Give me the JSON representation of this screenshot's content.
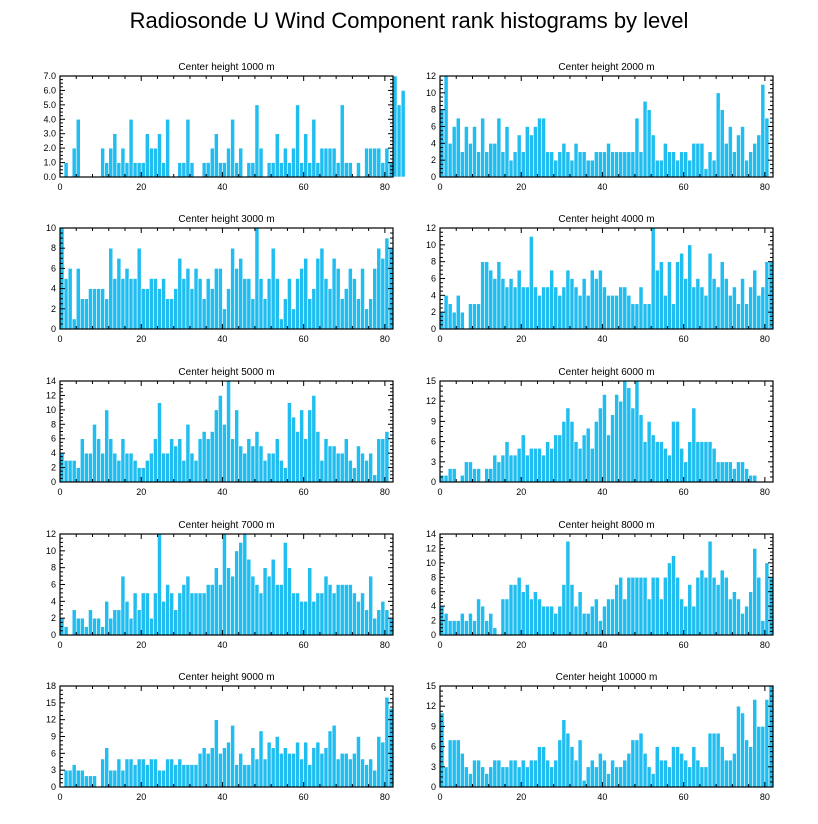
{
  "title": "Radiosonde U Wind Component rank histograms by level",
  "colors": {
    "bar": "#1fbdf0",
    "axis": "#000000",
    "background": "#ffffff"
  },
  "chart_data": [
    {
      "type": "bar",
      "title": "Center height 1000 m",
      "xlim": [
        0,
        82
      ],
      "xticks": [
        0,
        20,
        40,
        60,
        80
      ],
      "ylim": [
        0,
        7
      ],
      "yticks": [
        0,
        1,
        2,
        3,
        4,
        5,
        6,
        7
      ],
      "ytick_labels": [
        "0.0",
        "1.0",
        "2.0",
        "3.0",
        "4.0",
        "5.0",
        "6.0",
        "7.0"
      ],
      "values": [
        0,
        1,
        0,
        2,
        4,
        0,
        0,
        0,
        0,
        0,
        2,
        1,
        2,
        3,
        1,
        2,
        1,
        4,
        1,
        1,
        1,
        3,
        2,
        2,
        3,
        1,
        4,
        0,
        0,
        1,
        1,
        4,
        1,
        0,
        0,
        1,
        1,
        2,
        3,
        1,
        1,
        2,
        4,
        1,
        2,
        0,
        1,
        1,
        5,
        2,
        0,
        1,
        1,
        3,
        1,
        2,
        1,
        2,
        5,
        1,
        3,
        1,
        4,
        1,
        2,
        2,
        2,
        2,
        1,
        5,
        1,
        1,
        0,
        1,
        0,
        2,
        2,
        2,
        2,
        1,
        2,
        1,
        7,
        5,
        6
      ]
    },
    {
      "type": "bar",
      "title": "Center height 2000 m",
      "xlim": [
        0,
        82
      ],
      "xticks": [
        0,
        20,
        40,
        60,
        80
      ],
      "ylim": [
        0,
        12
      ],
      "yticks": [
        0,
        2,
        4,
        6,
        8,
        10,
        12
      ],
      "values": [
        8,
        12,
        4,
        6,
        7,
        3,
        6,
        4,
        6,
        3,
        7,
        3,
        4,
        4,
        7,
        3,
        6,
        2,
        3,
        5,
        3,
        6,
        5,
        6,
        7,
        7,
        3,
        3,
        2,
        3,
        4,
        3,
        2,
        4,
        3,
        3,
        2,
        2,
        3,
        3,
        3,
        4,
        3,
        3,
        3,
        3,
        3,
        3,
        7,
        3,
        9,
        8,
        5,
        2,
        2,
        4,
        3,
        3,
        2,
        3,
        3,
        2,
        4,
        4,
        4,
        1,
        3,
        2,
        10,
        8,
        4,
        6,
        3,
        5,
        6,
        2,
        3,
        4,
        5,
        11,
        7
      ]
    },
    {
      "type": "bar",
      "title": "Center height 3000 m",
      "xlim": [
        0,
        82
      ],
      "xticks": [
        0,
        20,
        40,
        60,
        80
      ],
      "ylim": [
        0,
        10
      ],
      "yticks": [
        0,
        2,
        4,
        6,
        8,
        10
      ],
      "values": [
        10,
        5,
        6,
        1,
        6,
        3,
        3,
        4,
        4,
        4,
        4,
        3,
        8,
        5,
        7,
        5,
        6,
        5,
        5,
        8,
        4,
        4,
        5,
        5,
        4,
        5,
        3,
        3,
        4,
        7,
        5,
        6,
        4,
        6,
        5,
        3,
        5,
        4,
        6,
        6,
        2,
        4,
        8,
        6,
        7,
        5,
        5,
        3,
        10,
        5,
        3,
        5,
        8,
        5,
        1,
        3,
        5,
        2,
        5,
        6,
        7,
        3,
        4,
        7,
        8,
        5,
        4,
        7,
        6,
        3,
        4,
        6,
        5,
        3,
        6,
        2,
        3,
        6,
        8,
        7,
        9,
        8
      ]
    },
    {
      "type": "bar",
      "title": "Center height 4000 m",
      "xlim": [
        0,
        82
      ],
      "xticks": [
        0,
        20,
        40,
        60,
        80
      ],
      "ylim": [
        0,
        12
      ],
      "yticks": [
        0,
        2,
        4,
        6,
        8,
        10,
        12
      ],
      "values": [
        2,
        4,
        3,
        2,
        4,
        2,
        0,
        3,
        3,
        3,
        8,
        8,
        7,
        6,
        8,
        6,
        5,
        6,
        5,
        7,
        5,
        5,
        11,
        5,
        4,
        5,
        5,
        7,
        5,
        4,
        5,
        7,
        6,
        5,
        4,
        6,
        4,
        7,
        6,
        7,
        5,
        4,
        4,
        4,
        5,
        5,
        4,
        3,
        3,
        5,
        3,
        3,
        12,
        7,
        8,
        4,
        8,
        3,
        8,
        9,
        6,
        10,
        5,
        6,
        5,
        4,
        9,
        6,
        5,
        8,
        6,
        4,
        5,
        3,
        6,
        3,
        5,
        7,
        4,
        5,
        8,
        8
      ]
    },
    {
      "type": "bar",
      "title": "Center height 5000 m",
      "xlim": [
        0,
        82
      ],
      "xticks": [
        0,
        20,
        40,
        60,
        80
      ],
      "ylim": [
        0,
        14
      ],
      "yticks": [
        0,
        2,
        4,
        6,
        8,
        10,
        12,
        14
      ],
      "values": [
        4,
        3,
        3,
        3,
        2,
        6,
        4,
        4,
        8,
        6,
        4,
        10,
        6,
        4,
        3,
        6,
        4,
        4,
        3,
        2,
        2,
        3,
        4,
        6,
        11,
        4,
        4,
        6,
        5,
        6,
        3,
        8,
        4,
        3,
        6,
        7,
        6,
        7,
        10,
        12,
        8,
        14,
        6,
        10,
        5,
        4,
        6,
        5,
        7,
        5,
        3,
        4,
        4,
        6,
        3,
        2,
        11,
        9,
        7,
        10,
        6,
        10,
        12,
        7,
        3,
        6,
        5,
        5,
        4,
        4,
        6,
        3,
        2,
        5,
        4,
        3,
        4,
        1,
        6,
        6,
        7
      ]
    },
    {
      "type": "bar",
      "title": "Center height 6000 m",
      "xlim": [
        0,
        82
      ],
      "xticks": [
        0,
        20,
        40,
        60,
        80
      ],
      "ylim": [
        0,
        15
      ],
      "yticks": [
        0,
        3,
        6,
        9,
        12,
        15
      ],
      "ytick_labels": [
        "0",
        "3",
        "6",
        "9",
        "12",
        "15"
      ],
      "values": [
        1,
        1,
        2,
        2,
        0,
        1,
        3,
        3,
        2,
        2,
        0,
        2,
        2,
        4,
        3,
        4,
        6,
        4,
        4,
        5,
        7,
        4,
        5,
        5,
        5,
        4,
        6,
        5,
        7,
        7,
        9,
        11,
        9,
        6,
        5,
        7,
        8,
        5,
        9,
        11,
        13,
        7,
        10,
        13,
        12,
        15,
        14,
        11,
        15,
        10,
        6,
        9,
        7,
        6,
        6,
        5,
        4,
        9,
        9,
        5,
        3,
        6,
        11,
        6,
        6,
        6,
        6,
        5,
        3,
        3,
        3,
        3,
        2,
        3,
        3,
        2,
        1,
        1,
        0,
        0,
        0
      ]
    },
    {
      "type": "bar",
      "title": "Center height 7000 m",
      "xlim": [
        0,
        82
      ],
      "xticks": [
        0,
        20,
        40,
        60,
        80
      ],
      "ylim": [
        0,
        12
      ],
      "yticks": [
        0,
        2,
        4,
        6,
        8,
        10,
        12
      ],
      "values": [
        2,
        1,
        0,
        3,
        2,
        2,
        1,
        3,
        2,
        2,
        1,
        4,
        2,
        3,
        3,
        7,
        4,
        2,
        5,
        3,
        5,
        5,
        2,
        5,
        12,
        4,
        6,
        5,
        3,
        5,
        6,
        7,
        5,
        5,
        5,
        5,
        6,
        6,
        8,
        6,
        12,
        8,
        7,
        10,
        11,
        12,
        9,
        7,
        6,
        5,
        8,
        7,
        9,
        6,
        6,
        11,
        8,
        5,
        5,
        4,
        4,
        8,
        4,
        5,
        5,
        7,
        6,
        5,
        6,
        6,
        6,
        6,
        5,
        4,
        5,
        3,
        7,
        2,
        3,
        4,
        3,
        2
      ]
    },
    {
      "type": "bar",
      "title": "Center height 8000 m",
      "xlim": [
        0,
        82
      ],
      "xticks": [
        0,
        20,
        40,
        60,
        80
      ],
      "ylim": [
        0,
        14
      ],
      "yticks": [
        0,
        2,
        4,
        6,
        8,
        10,
        12,
        14
      ],
      "values": [
        4,
        3,
        2,
        2,
        2,
        3,
        2,
        3,
        2,
        5,
        4,
        2,
        3,
        1,
        0,
        5,
        5,
        7,
        7,
        8,
        6,
        7,
        5,
        6,
        5,
        4,
        4,
        4,
        3,
        4,
        7,
        13,
        7,
        4,
        6,
        3,
        3,
        4,
        5,
        2,
        4,
        5,
        5,
        7,
        8,
        5,
        8,
        8,
        8,
        8,
        8,
        5,
        8,
        8,
        5,
        8,
        10,
        11,
        8,
        5,
        4,
        7,
        4,
        8,
        9,
        8,
        13,
        8,
        7,
        9,
        8,
        5,
        6,
        5,
        3,
        4,
        6,
        12,
        8,
        2,
        10,
        8
      ]
    },
    {
      "type": "bar",
      "title": "Center height 9000 m",
      "xlim": [
        0,
        82
      ],
      "xticks": [
        0,
        20,
        40,
        60,
        80
      ],
      "ylim": [
        0,
        18
      ],
      "yticks": [
        0,
        3,
        6,
        9,
        12,
        15,
        18
      ],
      "values": [
        0,
        3,
        3,
        4,
        3,
        3,
        2,
        2,
        2,
        0,
        5,
        7,
        3,
        3,
        5,
        3,
        5,
        5,
        4,
        5,
        5,
        4,
        5,
        5,
        3,
        3,
        5,
        5,
        4,
        5,
        4,
        4,
        4,
        4,
        6,
        7,
        6,
        7,
        12,
        6,
        7,
        8,
        11,
        4,
        6,
        4,
        4,
        7,
        5,
        10,
        5,
        8,
        7,
        9,
        6,
        7,
        6,
        6,
        8,
        5,
        8,
        4,
        7,
        8,
        6,
        7,
        10,
        11,
        5,
        6,
        6,
        5,
        6,
        9,
        5,
        4,
        5,
        3,
        9,
        8,
        16,
        14
      ]
    },
    {
      "type": "bar",
      "title": "Center height 10000 m",
      "xlim": [
        0,
        82
      ],
      "xticks": [
        0,
        20,
        40,
        60,
        80
      ],
      "ylim": [
        0,
        15
      ],
      "yticks": [
        0,
        3,
        6,
        9,
        12,
        15
      ],
      "values": [
        11,
        3,
        7,
        7,
        7,
        5,
        3,
        2,
        4,
        4,
        3,
        2,
        3,
        4,
        4,
        3,
        3,
        4,
        4,
        3,
        4,
        3,
        4,
        4,
        6,
        6,
        4,
        3,
        4,
        7,
        10,
        8,
        6,
        4,
        7,
        1,
        3,
        4,
        3,
        5,
        4,
        2,
        4,
        3,
        3,
        4,
        5,
        7,
        7,
        8,
        5,
        3,
        2,
        6,
        4,
        4,
        3,
        6,
        6,
        5,
        4,
        3,
        6,
        4,
        3,
        3,
        8,
        8,
        8,
        6,
        4,
        4,
        5,
        12,
        11,
        7,
        6,
        13,
        9,
        9,
        13,
        15
      ]
    }
  ]
}
